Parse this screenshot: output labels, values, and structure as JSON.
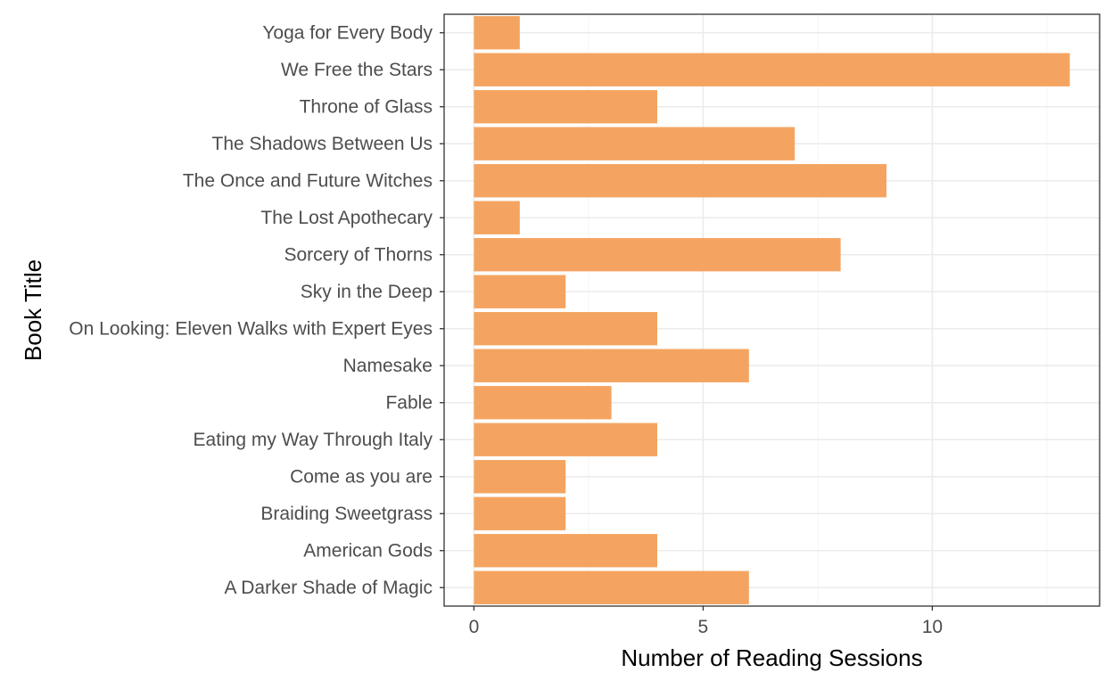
{
  "chart_data": {
    "type": "bar",
    "orientation": "horizontal",
    "title": "",
    "xlabel": "Number of Reading Sessions",
    "ylabel": "Book Title",
    "categories": [
      "A Darker Shade of Magic",
      "American Gods",
      "Braiding Sweetgrass",
      "Come as you are",
      "Eating my Way Through Italy",
      "Fable",
      "Namesake",
      "On Looking: Eleven Walks with Expert Eyes",
      "Sky in the Deep",
      "Sorcery of Thorns",
      "The Lost Apothecary",
      "The Once and Future Witches",
      "The Shadows Between Us",
      "Throne of Glass",
      "We Free the Stars",
      "Yoga for Every Body"
    ],
    "values": [
      6,
      4,
      2,
      2,
      4,
      3,
      6,
      4,
      2,
      8,
      1,
      9,
      7,
      4,
      13,
      1
    ],
    "xlim": [
      -0.65,
      13.65
    ],
    "xticks": [
      0,
      5,
      10
    ],
    "xtick_labels": [
      "0",
      "5",
      "10"
    ],
    "grid": true,
    "bar_color": "#F4A460",
    "theme": "bw"
  }
}
